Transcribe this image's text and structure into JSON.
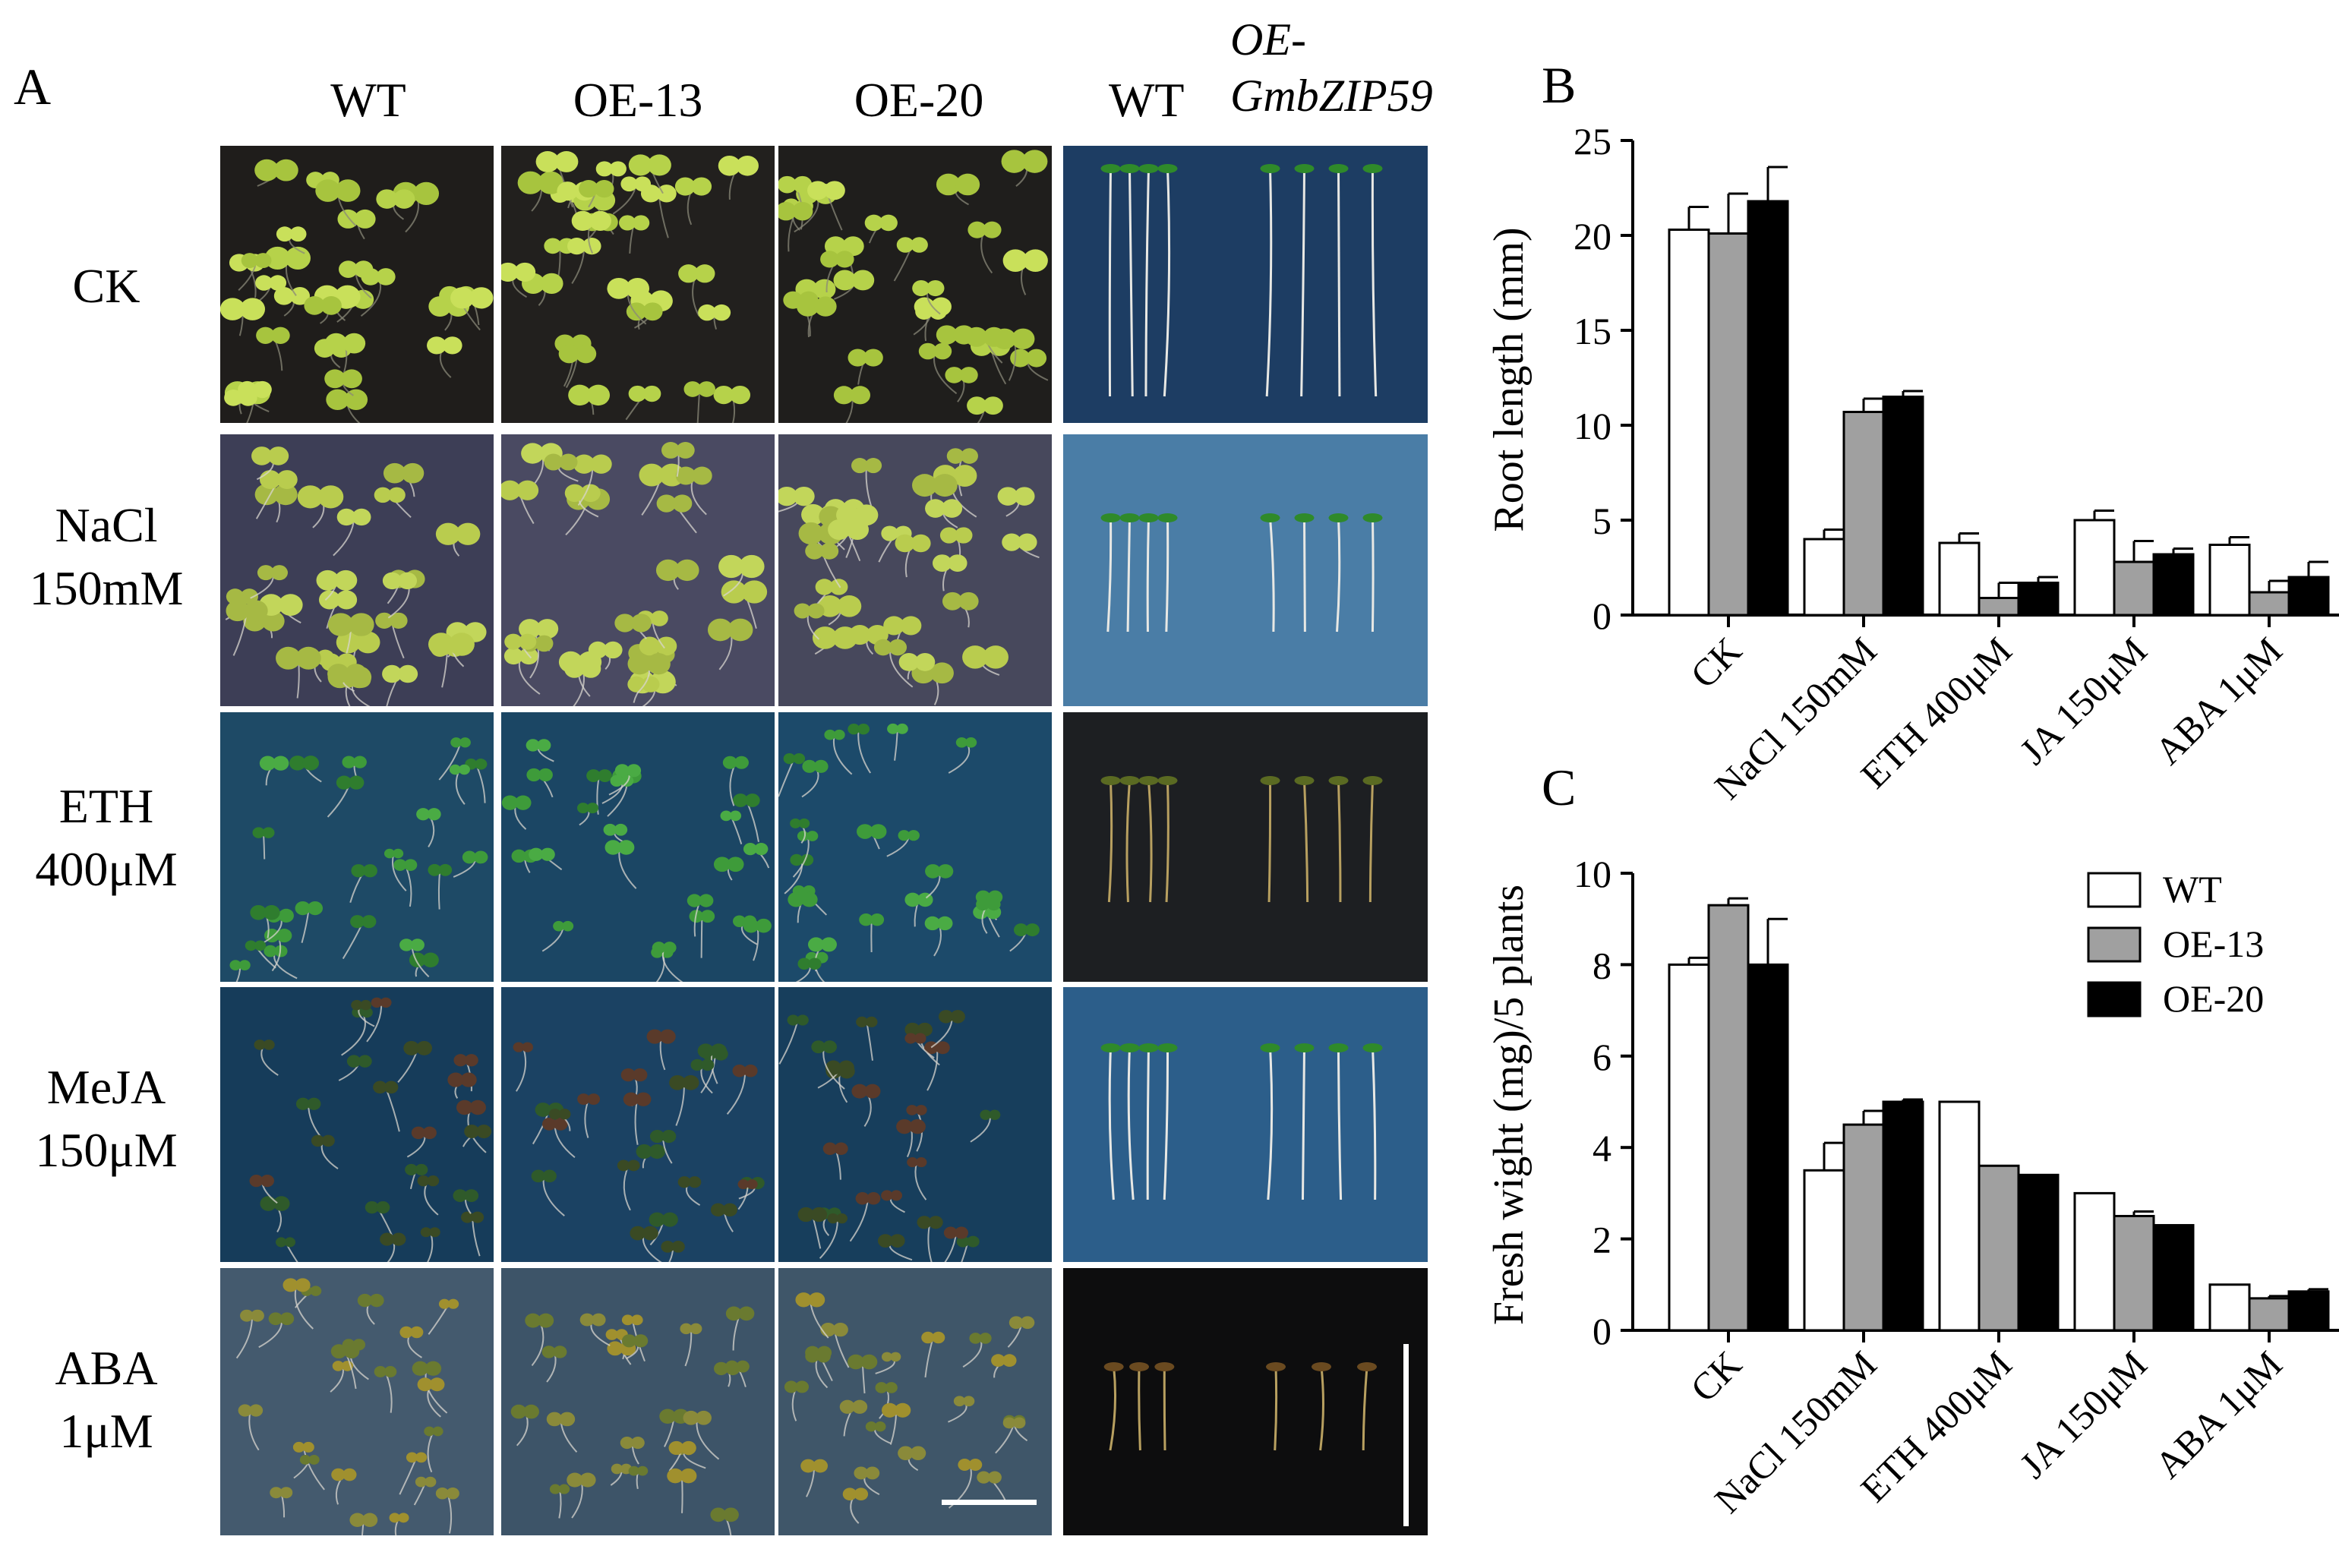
{
  "panel_a": {
    "letter": "A",
    "columns": [
      "WT",
      "OE-13",
      "OE-20"
    ],
    "seedling_col_wt": "WT",
    "seedling_col_oe_line1": "OE-",
    "seedling_col_oe_line2": "GmbZIP59",
    "rows": [
      {
        "line1": "CK",
        "line2": ""
      },
      {
        "line1": "NaCl",
        "line2": "150mM"
      },
      {
        "line1": "ETH",
        "line2": "400μM"
      },
      {
        "line1": "MeJA",
        "line2": "150μM"
      },
      {
        "line1": "ABA",
        "line2": "1μM"
      }
    ],
    "photo_backgrounds": [
      [
        "#1f1d1b",
        "#22201e",
        "#1f1e1c",
        "#1d3d63"
      ],
      [
        "#3d3e56",
        "#4a4a62",
        "#47485c",
        "#4a7da6"
      ],
      [
        "#1e4a66",
        "#1b4664",
        "#1c4a6a",
        "#1d1f22"
      ],
      [
        "#163c5a",
        "#1b4263",
        "#173e5c",
        "#2c5e8a"
      ],
      [
        "#445a6e",
        "#3d5468",
        "#3f5669",
        "#0d0d0e"
      ]
    ]
  },
  "chart_data": [
    {
      "type": "bar",
      "panel_letter": "B",
      "ylabel": "Root length (mm)",
      "xlabel": "",
      "categories": [
        "CK",
        "NaCl 150mM",
        "ETH 400μM",
        "JA 150μM",
        "ABA 1μM"
      ],
      "ylim": [
        0,
        25
      ],
      "yticks": [
        0,
        5,
        10,
        15,
        20,
        25
      ],
      "series": [
        {
          "name": "WT",
          "color": "#ffffff",
          "values": [
            20.3,
            4.0,
            3.8,
            5.0,
            3.7
          ],
          "errors": [
            1.2,
            0.5,
            0.5,
            0.5,
            0.4
          ]
        },
        {
          "name": "OE-13",
          "color": "#a0a0a0",
          "values": [
            20.1,
            10.7,
            0.9,
            2.8,
            1.2
          ],
          "errors": [
            2.1,
            0.7,
            0.8,
            1.1,
            0.6
          ]
        },
        {
          "name": "OE-20",
          "color": "#000000",
          "values": [
            21.8,
            11.5,
            1.7,
            3.2,
            2.0
          ],
          "errors": [
            1.8,
            0.3,
            0.3,
            0.3,
            0.8
          ]
        }
      ]
    },
    {
      "type": "bar",
      "panel_letter": "C",
      "ylabel": "Fresh wight (mg)/5 plants",
      "xlabel": "",
      "categories": [
        "CK",
        "NaCl 150mM",
        "ETH 400μM",
        "JA 150μM",
        "ABA 1μM"
      ],
      "ylim": [
        0,
        10
      ],
      "yticks": [
        0,
        2,
        4,
        6,
        8,
        10
      ],
      "legend_position": "top-right",
      "series": [
        {
          "name": "WT",
          "color": "#ffffff",
          "values": [
            8.0,
            3.5,
            5.0,
            3.0,
            1.0
          ],
          "errors": [
            0.15,
            0.6,
            0.0,
            0.0,
            0.0
          ]
        },
        {
          "name": "OE-13",
          "color": "#a0a0a0",
          "values": [
            9.3,
            4.5,
            3.6,
            2.5,
            0.7
          ],
          "errors": [
            0.15,
            0.3,
            0.0,
            0.1,
            0.05
          ]
        },
        {
          "name": "OE-20",
          "color": "#000000",
          "values": [
            8.0,
            5.0,
            3.4,
            2.3,
            0.85
          ],
          "errors": [
            1.0,
            0.05,
            0.0,
            0.0,
            0.05
          ]
        }
      ]
    }
  ]
}
